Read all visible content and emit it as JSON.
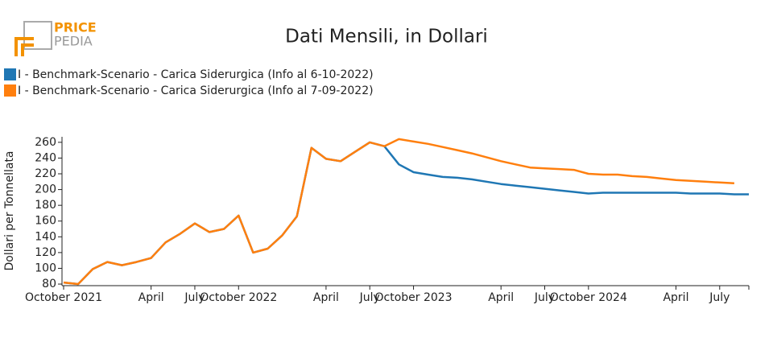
{
  "logo": {
    "top": "PRICE",
    "bottom": "PEDIA"
  },
  "chart_data": {
    "type": "line",
    "title": "Dati Mensili, in Dollari",
    "y_label": "Dollari per Tonnellata",
    "categories": [
      "October 2021",
      null,
      null,
      null,
      null,
      null,
      "April",
      null,
      null,
      "July",
      null,
      null,
      "October 2022",
      null,
      null,
      null,
      null,
      null,
      "April",
      null,
      null,
      "July",
      null,
      null,
      "October 2023",
      null,
      null,
      null,
      null,
      null,
      "April",
      null,
      null,
      "July",
      null,
      null,
      "October 2024",
      null,
      null,
      null,
      null,
      null,
      "April",
      null,
      null,
      "July",
      null,
      null
    ],
    "series": [
      {
        "name": "I - Benchmark-Scenario - Carica Siderurgica (Info al 6-10-2022)",
        "color": "#1f77b4",
        "values": [
          82,
          80,
          99,
          108,
          104,
          108,
          113,
          133,
          144,
          157,
          146,
          150,
          167,
          120,
          125,
          142,
          166,
          253,
          239,
          236,
          248,
          260,
          255,
          232,
          222,
          219,
          216,
          215,
          213,
          210,
          207,
          205,
          203,
          201,
          199,
          197,
          195,
          196,
          196,
          196,
          196,
          196,
          196,
          195,
          195,
          195,
          194,
          194
        ]
      },
      {
        "name": "I - Benchmark-Scenario - Carica Siderurgica (Info al 7-09-2022)",
        "color": "#ff7f0e",
        "values": [
          82,
          80,
          99,
          108,
          104,
          108,
          113,
          133,
          144,
          157,
          146,
          150,
          167,
          120,
          125,
          142,
          166,
          253,
          239,
          236,
          248,
          260,
          255,
          264,
          261,
          258,
          254,
          250,
          246,
          241,
          236,
          232,
          228,
          227,
          226,
          225,
          220,
          219,
          219,
          217,
          216,
          214,
          212,
          211,
          210,
          209,
          208,
          null
        ]
      }
    ],
    "ylim": [
      78,
      267
    ],
    "yticks": [
      80,
      100,
      120,
      140,
      160,
      180,
      200,
      220,
      240,
      260
    ]
  }
}
